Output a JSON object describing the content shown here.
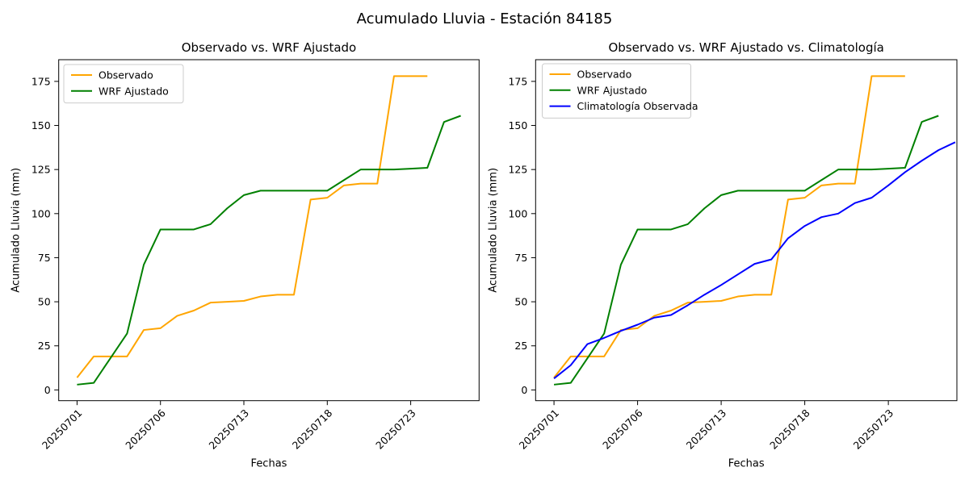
{
  "figure": {
    "title": "Acumulado Lluvia - Estación 84185",
    "background_color": "#ffffff",
    "text_color": "#000000",
    "axis_color": "#000000"
  },
  "chart_data": [
    {
      "type": "line",
      "title": "Observado vs. WRF Ajustado",
      "xlabel": "Fechas",
      "ylabel": "Acumulado Lluvia (mm)",
      "x_tick_labels": [
        "20250701",
        "20250706",
        "20250713",
        "20250718",
        "20250723"
      ],
      "x_tick_indices": [
        0,
        5,
        10,
        15,
        20
      ],
      "x_tick_rotation": -45,
      "y_ticks": [
        0,
        25,
        50,
        75,
        100,
        125,
        150,
        175
      ],
      "xlim": [
        -1.1,
        24.1
      ],
      "ylim": [
        -6.1,
        187.3
      ],
      "grid": false,
      "legend_position": "upper-left",
      "series": [
        {
          "name": "Observado",
          "color": "#FFA500",
          "values": [
            7,
            19,
            19,
            19,
            34,
            35,
            42,
            45,
            49.5,
            50,
            50.5,
            53,
            54,
            54,
            108,
            109,
            116,
            117,
            117,
            178,
            178,
            178
          ]
        },
        {
          "name": "WRF Ajustado",
          "color": "#008000",
          "values": [
            3,
            4,
            18,
            32,
            71,
            91,
            91,
            91,
            94,
            103,
            110.5,
            113,
            113,
            113,
            113,
            113,
            119,
            125,
            125,
            125,
            125.5,
            126,
            152,
            155.5
          ]
        }
      ]
    },
    {
      "type": "line",
      "title": "Observado vs. WRF Ajustado vs. Climatología",
      "xlabel": "Fechas",
      "ylabel": "Acumulado Lluvia (mm)",
      "x_tick_labels": [
        "20250701",
        "20250706",
        "20250713",
        "20250718",
        "20250723"
      ],
      "x_tick_indices": [
        0,
        5,
        10,
        15,
        20
      ],
      "x_tick_rotation": -45,
      "y_ticks": [
        0,
        25,
        50,
        75,
        100,
        125,
        150,
        175
      ],
      "xlim": [
        -1.1,
        24.1
      ],
      "ylim": [
        -6.1,
        187.3
      ],
      "grid": false,
      "legend_position": "upper-left",
      "series": [
        {
          "name": "Observado",
          "color": "#FFA500",
          "values": [
            7,
            19,
            19,
            19,
            34,
            35,
            42,
            45,
            49.5,
            50,
            50.5,
            53,
            54,
            54,
            108,
            109,
            116,
            117,
            117,
            178,
            178,
            178
          ]
        },
        {
          "name": "WRF Ajustado",
          "color": "#008000",
          "values": [
            3,
            4,
            18,
            32,
            71,
            91,
            91,
            91,
            94,
            103,
            110.5,
            113,
            113,
            113,
            113,
            113,
            119,
            125,
            125,
            125,
            125.5,
            126,
            152,
            155.5
          ]
        },
        {
          "name": "Climatología Observada",
          "color": "#0000FF",
          "values": [
            6.5,
            14,
            26,
            29.5,
            33.5,
            37,
            41,
            42.5,
            48,
            54,
            59.5,
            65.5,
            71.5,
            74,
            86,
            93,
            98,
            100,
            106,
            109,
            116,
            123.5,
            130,
            136,
            140.5
          ]
        }
      ]
    }
  ]
}
